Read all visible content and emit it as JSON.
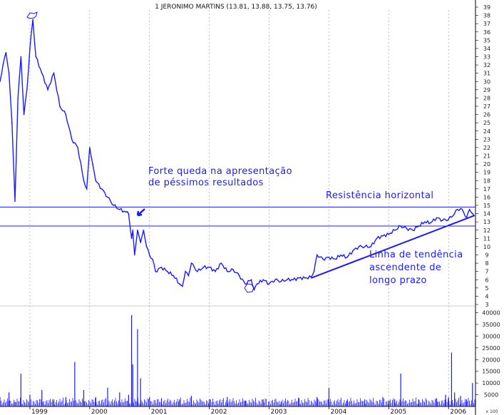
{
  "chart_data": {
    "type": "line",
    "title": "1 JERONIMO MARTINS (13.81, 13.88, 13.75, 13.76)",
    "price_axis": {
      "ylim": [
        3,
        39
      ],
      "ticks": [
        3,
        4,
        5,
        6,
        7,
        8,
        9,
        10,
        11,
        12,
        13,
        14,
        15,
        16,
        17,
        18,
        19,
        20,
        21,
        22,
        23,
        24,
        25,
        26,
        27,
        28,
        29,
        30,
        31,
        32,
        33,
        34,
        35,
        36,
        37,
        38,
        39
      ]
    },
    "volume_axis": {
      "ylim": [
        0,
        42000
      ],
      "ticks": [
        5000,
        10000,
        15000,
        20000,
        25000,
        30000,
        35000,
        40000
      ],
      "scale_label": "x 100"
    },
    "x_axis": {
      "range": [
        1998.5,
        2006.45
      ],
      "labels": [
        "1999",
        "2000",
        "2001",
        "2002",
        "2003",
        "2004",
        "2005",
        "2006"
      ],
      "label_years": [
        1999,
        2000,
        2001,
        2002,
        2003,
        2004,
        2005,
        2006
      ]
    },
    "series": [
      {
        "x": [
          1998.5,
          1998.55,
          1998.6,
          1998.65,
          1998.7,
          1998.75,
          1998.8,
          1998.85,
          1998.9,
          1998.95,
          1999.0,
          1999.05,
          1999.1,
          1999.2,
          1999.3,
          1999.4,
          1999.5,
          1999.6,
          1999.7,
          1999.8,
          1999.9,
          1999.95,
          2000.0,
          2000.05,
          2000.1,
          2000.2,
          2000.3,
          2000.4,
          2000.5,
          2000.6,
          2000.65,
          2000.7,
          2000.72,
          2000.75,
          2000.8,
          2000.85,
          2000.9,
          2000.95,
          2001.0,
          2001.05,
          2001.1,
          2001.2,
          2001.3,
          2001.4,
          2001.5,
          2001.55,
          2001.6,
          2001.65,
          2001.7,
          2001.8,
          2001.9,
          2002.0,
          2002.1,
          2002.2,
          2002.3,
          2002.4,
          2002.5,
          2002.6,
          2002.7,
          2002.75,
          2002.8,
          2002.9,
          2003.0,
          2003.1,
          2003.2,
          2003.3,
          2003.4,
          2003.5,
          2003.6,
          2003.7,
          2003.75,
          2003.8,
          2003.9,
          2004.0,
          2004.1,
          2004.2,
          2004.3,
          2004.4,
          2004.5,
          2004.6,
          2004.7,
          2004.8,
          2004.9,
          2005.0,
          2005.1,
          2005.2,
          2005.3,
          2005.4,
          2005.5,
          2005.6,
          2005.7,
          2005.8,
          2005.9,
          2006.0,
          2006.1,
          2006.15,
          2006.2,
          2006.25,
          2006.3,
          2006.35,
          2006.4,
          2006.43
        ],
        "values": [
          30,
          32,
          33.5,
          31,
          25,
          15.5,
          28,
          33,
          26,
          29,
          34,
          37.5,
          33,
          31,
          29,
          31,
          27,
          26,
          23,
          22,
          18,
          17,
          22,
          20,
          18,
          17,
          16,
          15,
          14.5,
          14.2,
          14.0,
          11,
          12,
          9,
          12,
          10.5,
          12,
          10,
          9,
          8.5,
          7,
          7.5,
          7,
          6.5,
          5.5,
          5.2,
          7,
          6.5,
          8,
          7,
          7.5,
          7.5,
          7,
          8,
          7,
          7.2,
          6.5,
          5.5,
          6,
          4.8,
          5.5,
          6,
          5.5,
          6,
          5.8,
          6,
          6,
          6.2,
          6.2,
          6.3,
          7,
          9,
          8.5,
          8.7,
          8.5,
          9,
          8.7,
          9.5,
          10,
          10,
          10,
          11,
          11.3,
          11.5,
          12,
          12.5,
          12.2,
          12,
          12.5,
          13,
          12.9,
          13.5,
          13.2,
          13.3,
          14,
          14.5,
          14.6,
          14.2,
          13.5,
          14.5,
          14,
          13.76
        ]
      }
    ],
    "volume": {
      "x": [
        1998.5,
        1998.65,
        1998.75,
        1998.85,
        1999.0,
        1999.2,
        1999.4,
        1999.6,
        1999.75,
        1999.9,
        2000.1,
        2000.3,
        2000.5,
        2000.65,
        2000.7,
        2000.72,
        2000.8,
        2000.85,
        2001.0,
        2001.2,
        2001.5,
        2001.7,
        2002.0,
        2002.3,
        2002.6,
        2002.9,
        2003.2,
        2003.5,
        2003.8,
        2004.0,
        2004.3,
        2004.6,
        2004.9,
        2005.0,
        2005.1,
        2005.2,
        2005.5,
        2005.8,
        2005.95,
        2006.0,
        2006.05,
        2006.1,
        2006.2,
        2006.3,
        2006.4
      ],
      "values": [
        4000,
        6000,
        2000,
        14000,
        5000,
        7000,
        3000,
        4000,
        19000,
        7000,
        4000,
        8000,
        6000,
        5000,
        39000,
        18000,
        33000,
        12000,
        4000,
        3500,
        3000,
        4500,
        3000,
        4000,
        2500,
        3000,
        2000,
        3500,
        4000,
        8000,
        2500,
        3000,
        4000,
        2500,
        3000,
        14000,
        3000,
        3500,
        5000,
        4000,
        23000,
        6000,
        4500,
        3000,
        10000
      ]
    },
    "hlines": [
      14.8,
      12.5
    ],
    "trendline": {
      "from": [
        2003.7,
        6.2
      ],
      "to": [
        2006.43,
        13.76
      ]
    },
    "annotations": {
      "queda": [
        "Forte queda na apresentação",
        "de péssimos resultados"
      ],
      "resist": "Resistência horizontal",
      "linha": [
        "Linha de tendência",
        "ascendente de",
        "longo prazo"
      ]
    },
    "colors": {
      "price": "#1a1aff",
      "volume": "#1a1aff",
      "grid": "#888888",
      "annotation": "#1a1aff",
      "lines": "#1a1aff"
    }
  }
}
